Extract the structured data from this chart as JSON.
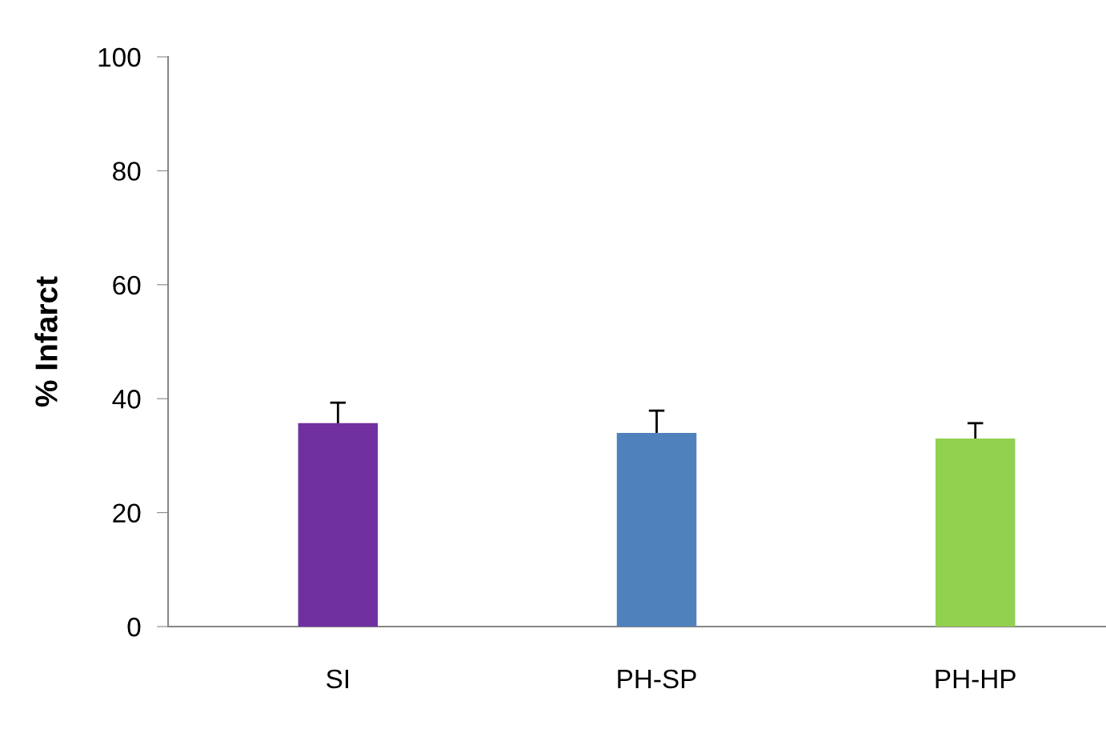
{
  "chart_data": {
    "type": "bar",
    "ylabel": "% Infarct",
    "categories": [
      "SI",
      "PH-SP",
      "PH-HP"
    ],
    "values": [
      35.7,
      34.0,
      33.0
    ],
    "errors": [
      3.6,
      3.9,
      2.7
    ],
    "colors": [
      "#7030a0",
      "#4f81bd",
      "#92d050"
    ],
    "ylim": [
      0,
      100
    ],
    "yticks": [
      0,
      20,
      40,
      60,
      80,
      100
    ],
    "grid": false
  }
}
